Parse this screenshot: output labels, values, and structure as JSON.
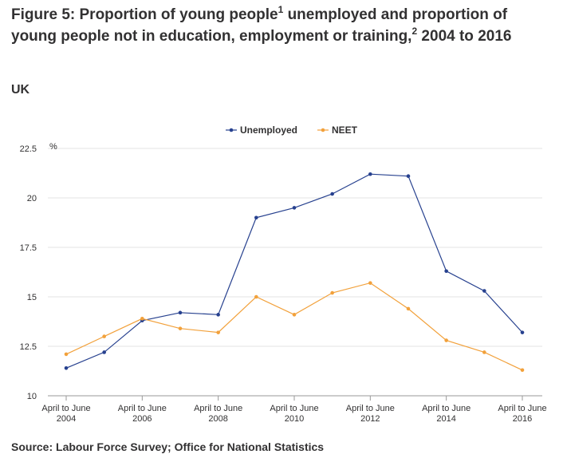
{
  "title": {
    "part1": "Figure 5: Proportion of young people",
    "sup1": "1",
    "part2": " unemployed and proportion of young people not in education, employment or training,",
    "sup2": "2",
    "part3": " 2004 to 2016"
  },
  "geography": "UK",
  "source": "Source: Labour Force Survey; Office for National Statistics",
  "colors": {
    "unemployed": "#27418f",
    "neet": "#f2a13b",
    "grid": "#e3e3e3",
    "axis": "#999999"
  },
  "chart_data": {
    "type": "line",
    "ylabel": "%",
    "ylim": [
      10,
      22.5
    ],
    "yticks": [
      10,
      12.5,
      15,
      17.5,
      20,
      22.5
    ],
    "ytick_labels": [
      "10",
      "12.5",
      "15",
      "17.5",
      "20",
      "22.5"
    ],
    "x": [
      2004,
      2005,
      2006,
      2007,
      2008,
      2009,
      2010,
      2011,
      2012,
      2013,
      2014,
      2015,
      2016
    ],
    "xtick_labels": [
      {
        "line1": "April to June",
        "line2": "2004"
      },
      {
        "line1": "April to June",
        "line2": "2006"
      },
      {
        "line1": "April to June",
        "line2": "2008"
      },
      {
        "line1": "April to June",
        "line2": "2010"
      },
      {
        "line1": "April to June",
        "line2": "2012"
      },
      {
        "line1": "April to June",
        "line2": "2014"
      },
      {
        "line1": "April to June",
        "line2": "2016"
      }
    ],
    "legend_position": "top-center",
    "series": [
      {
        "name": "Unemployed",
        "values": [
          11.4,
          12.2,
          13.8,
          14.2,
          14.1,
          19.0,
          19.5,
          20.2,
          21.2,
          21.1,
          16.3,
          15.3,
          13.2
        ]
      },
      {
        "name": "NEET",
        "values": [
          12.1,
          13.0,
          13.9,
          13.4,
          13.2,
          15.0,
          14.1,
          15.2,
          15.7,
          14.4,
          12.8,
          12.2,
          11.3
        ]
      }
    ]
  }
}
